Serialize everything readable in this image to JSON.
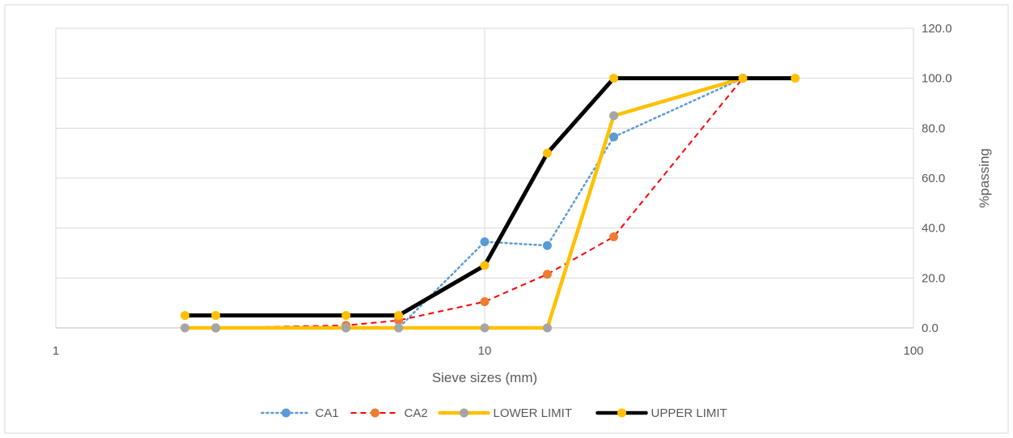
{
  "chart_data": {
    "type": "line",
    "title": "",
    "xlabel": "Sieve sizes (mm)",
    "ylabel": "%passing",
    "x_scale": "log",
    "xlim": [
      1,
      100
    ],
    "ylim": [
      0,
      120
    ],
    "x_ticks": [
      1,
      10,
      100
    ],
    "x_tick_labels": [
      "1",
      "10",
      "100"
    ],
    "y_ticks": [
      0,
      20,
      40,
      60,
      80,
      100,
      120
    ],
    "y_tick_labels": [
      "0.0",
      "20.0",
      "40.0",
      "60.0",
      "80.0",
      "100.0",
      "120.0"
    ],
    "y_axis_side": "right",
    "grid": true,
    "legend_position": "bottom",
    "series": [
      {
        "name": "CA1",
        "color": "#5b9bd5",
        "line_style": "dotted",
        "marker_color": "#5b9bd5",
        "points": [
          [
            2.36,
            0
          ],
          [
            4.75,
            0
          ],
          [
            6.3,
            0
          ],
          [
            10,
            34.5
          ],
          [
            14,
            33
          ],
          [
            20,
            76.5
          ],
          [
            40,
            100
          ]
        ]
      },
      {
        "name": "CA2",
        "color": "#ff0000",
        "marker_color": "#ed7d31",
        "line_style": "dashed",
        "points": [
          [
            2.36,
            0
          ],
          [
            4.75,
            1
          ],
          [
            6.3,
            3
          ],
          [
            10,
            10.5
          ],
          [
            14,
            21.5
          ],
          [
            20,
            36.5
          ],
          [
            40,
            100
          ]
        ]
      },
      {
        "name": "LOWER LIMIT",
        "color": "#ffc000",
        "marker_color": "#a5a5a5",
        "line_style": "solid",
        "points": [
          [
            2,
            0
          ],
          [
            2.36,
            0
          ],
          [
            4.75,
            0
          ],
          [
            6.3,
            0
          ],
          [
            10,
            0
          ],
          [
            14,
            0
          ],
          [
            20,
            85
          ],
          [
            40,
            100
          ]
        ]
      },
      {
        "name": "UPPER LIMIT",
        "color": "#000000",
        "marker_color": "#ffc000",
        "line_style": "solid",
        "points": [
          [
            2,
            5
          ],
          [
            2.36,
            5
          ],
          [
            4.75,
            5
          ],
          [
            6.3,
            5
          ],
          [
            10,
            25
          ],
          [
            14,
            70
          ],
          [
            20,
            100
          ],
          [
            40,
            100
          ],
          [
            53,
            100
          ]
        ]
      }
    ]
  }
}
